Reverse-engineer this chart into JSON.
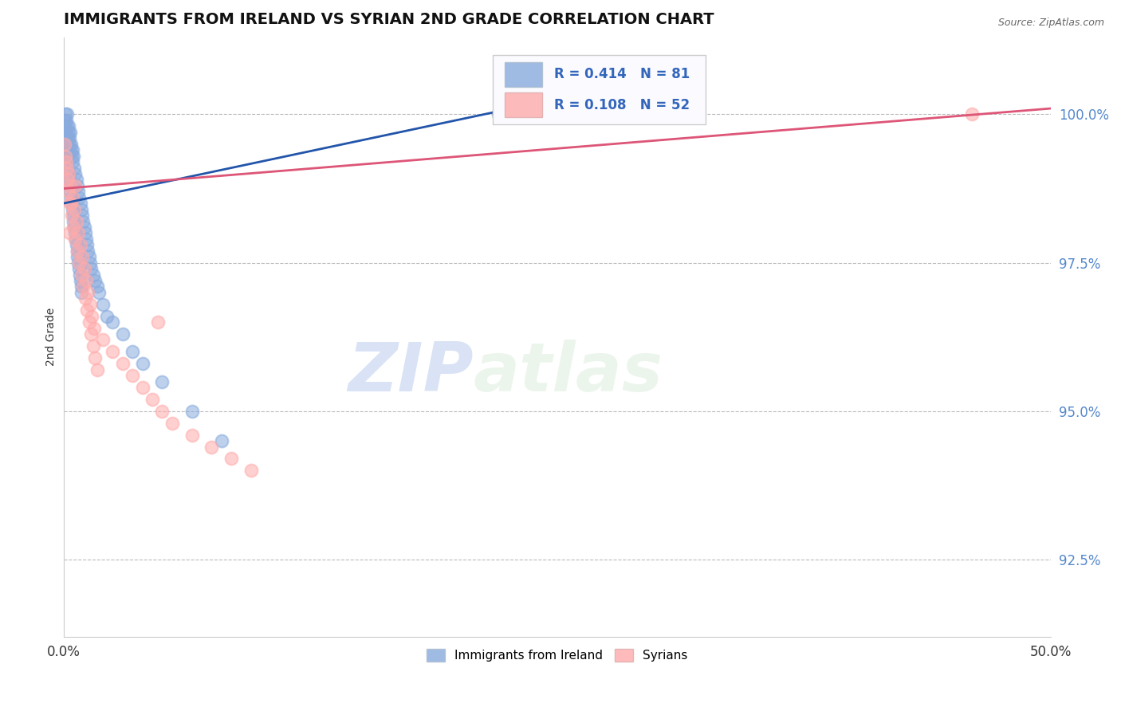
{
  "title": "IMMIGRANTS FROM IRELAND VS SYRIAN 2ND GRADE CORRELATION CHART",
  "source": "Source: ZipAtlas.com",
  "ylabel": "2nd Grade",
  "yticks": [
    92.5,
    95.0,
    97.5,
    100.0
  ],
  "ytick_labels": [
    "92.5%",
    "95.0%",
    "97.5%",
    "100.0%"
  ],
  "xlim": [
    0.0,
    50.0
  ],
  "ylim": [
    91.2,
    101.3
  ],
  "ireland_color": "#88AADD",
  "syrian_color": "#FFAAAA",
  "ireland_R": 0.414,
  "ireland_N": 81,
  "syrian_R": 0.108,
  "syrian_N": 52,
  "ireland_line_color": "#2255AA",
  "syrian_line_color": "#DD5577",
  "ireland_x": [
    0.05,
    0.08,
    0.1,
    0.12,
    0.15,
    0.18,
    0.2,
    0.22,
    0.25,
    0.28,
    0.3,
    0.32,
    0.35,
    0.38,
    0.4,
    0.42,
    0.45,
    0.48,
    0.5,
    0.55,
    0.6,
    0.65,
    0.7,
    0.75,
    0.8,
    0.85,
    0.9,
    0.95,
    1.0,
    1.05,
    1.1,
    1.15,
    1.2,
    1.25,
    1.3,
    1.35,
    1.4,
    1.5,
    1.6,
    1.7,
    0.05,
    0.07,
    0.09,
    0.11,
    0.13,
    0.16,
    0.19,
    0.21,
    0.23,
    0.26,
    0.29,
    0.33,
    0.36,
    0.39,
    0.43,
    0.46,
    0.49,
    0.52,
    0.56,
    0.59,
    0.62,
    0.66,
    0.69,
    0.72,
    0.76,
    0.79,
    0.82,
    0.86,
    0.89,
    0.92,
    1.8,
    2.0,
    2.2,
    2.5,
    3.0,
    3.5,
    4.0,
    5.0,
    6.5,
    8.0,
    22.0
  ],
  "ireland_y": [
    99.8,
    99.9,
    100.0,
    99.7,
    99.9,
    99.8,
    100.0,
    99.6,
    99.8,
    99.7,
    99.5,
    99.6,
    99.7,
    99.4,
    99.5,
    99.3,
    99.4,
    99.2,
    99.3,
    99.1,
    99.0,
    98.9,
    98.8,
    98.7,
    98.6,
    98.5,
    98.4,
    98.3,
    98.2,
    98.1,
    98.0,
    97.9,
    97.8,
    97.7,
    97.6,
    97.5,
    97.4,
    97.3,
    97.2,
    97.1,
    99.5,
    99.4,
    99.6,
    99.3,
    99.5,
    99.2,
    99.4,
    99.1,
    99.3,
    99.0,
    98.9,
    98.8,
    98.7,
    98.6,
    98.5,
    98.4,
    98.3,
    98.2,
    98.1,
    98.0,
    97.9,
    97.8,
    97.7,
    97.6,
    97.5,
    97.4,
    97.3,
    97.2,
    97.1,
    97.0,
    97.0,
    96.8,
    96.6,
    96.5,
    96.3,
    96.0,
    95.8,
    95.5,
    95.0,
    94.5,
    100.0
  ],
  "syrian_x": [
    0.08,
    0.12,
    0.18,
    0.22,
    0.28,
    0.35,
    0.42,
    0.5,
    0.6,
    0.7,
    0.8,
    0.9,
    1.0,
    1.1,
    1.2,
    1.3,
    1.4,
    1.5,
    1.6,
    1.7,
    0.15,
    0.25,
    0.35,
    0.45,
    0.55,
    0.65,
    0.75,
    0.85,
    0.95,
    1.05,
    1.15,
    1.25,
    1.35,
    1.45,
    1.55,
    2.0,
    2.5,
    3.0,
    3.5,
    4.0,
    4.5,
    5.0,
    5.5,
    6.5,
    7.5,
    8.5,
    9.5,
    0.3,
    0.4,
    0.6,
    4.8,
    46.0
  ],
  "syrian_y": [
    99.5,
    99.3,
    99.1,
    98.9,
    98.7,
    98.5,
    98.3,
    98.1,
    97.9,
    97.7,
    97.5,
    97.3,
    97.1,
    96.9,
    96.7,
    96.5,
    96.3,
    96.1,
    95.9,
    95.7,
    99.2,
    99.0,
    98.8,
    98.6,
    98.4,
    98.2,
    98.0,
    97.8,
    97.6,
    97.4,
    97.2,
    97.0,
    96.8,
    96.6,
    96.4,
    96.2,
    96.0,
    95.8,
    95.6,
    95.4,
    95.2,
    95.0,
    94.8,
    94.6,
    94.4,
    94.2,
    94.0,
    98.0,
    98.5,
    98.8,
    96.5,
    100.0
  ],
  "watermark_zip": "ZIP",
  "watermark_atlas": "atlas",
  "legend_facecolor": "#FAFAFF",
  "legend_edgecolor": "#CCCCCC"
}
